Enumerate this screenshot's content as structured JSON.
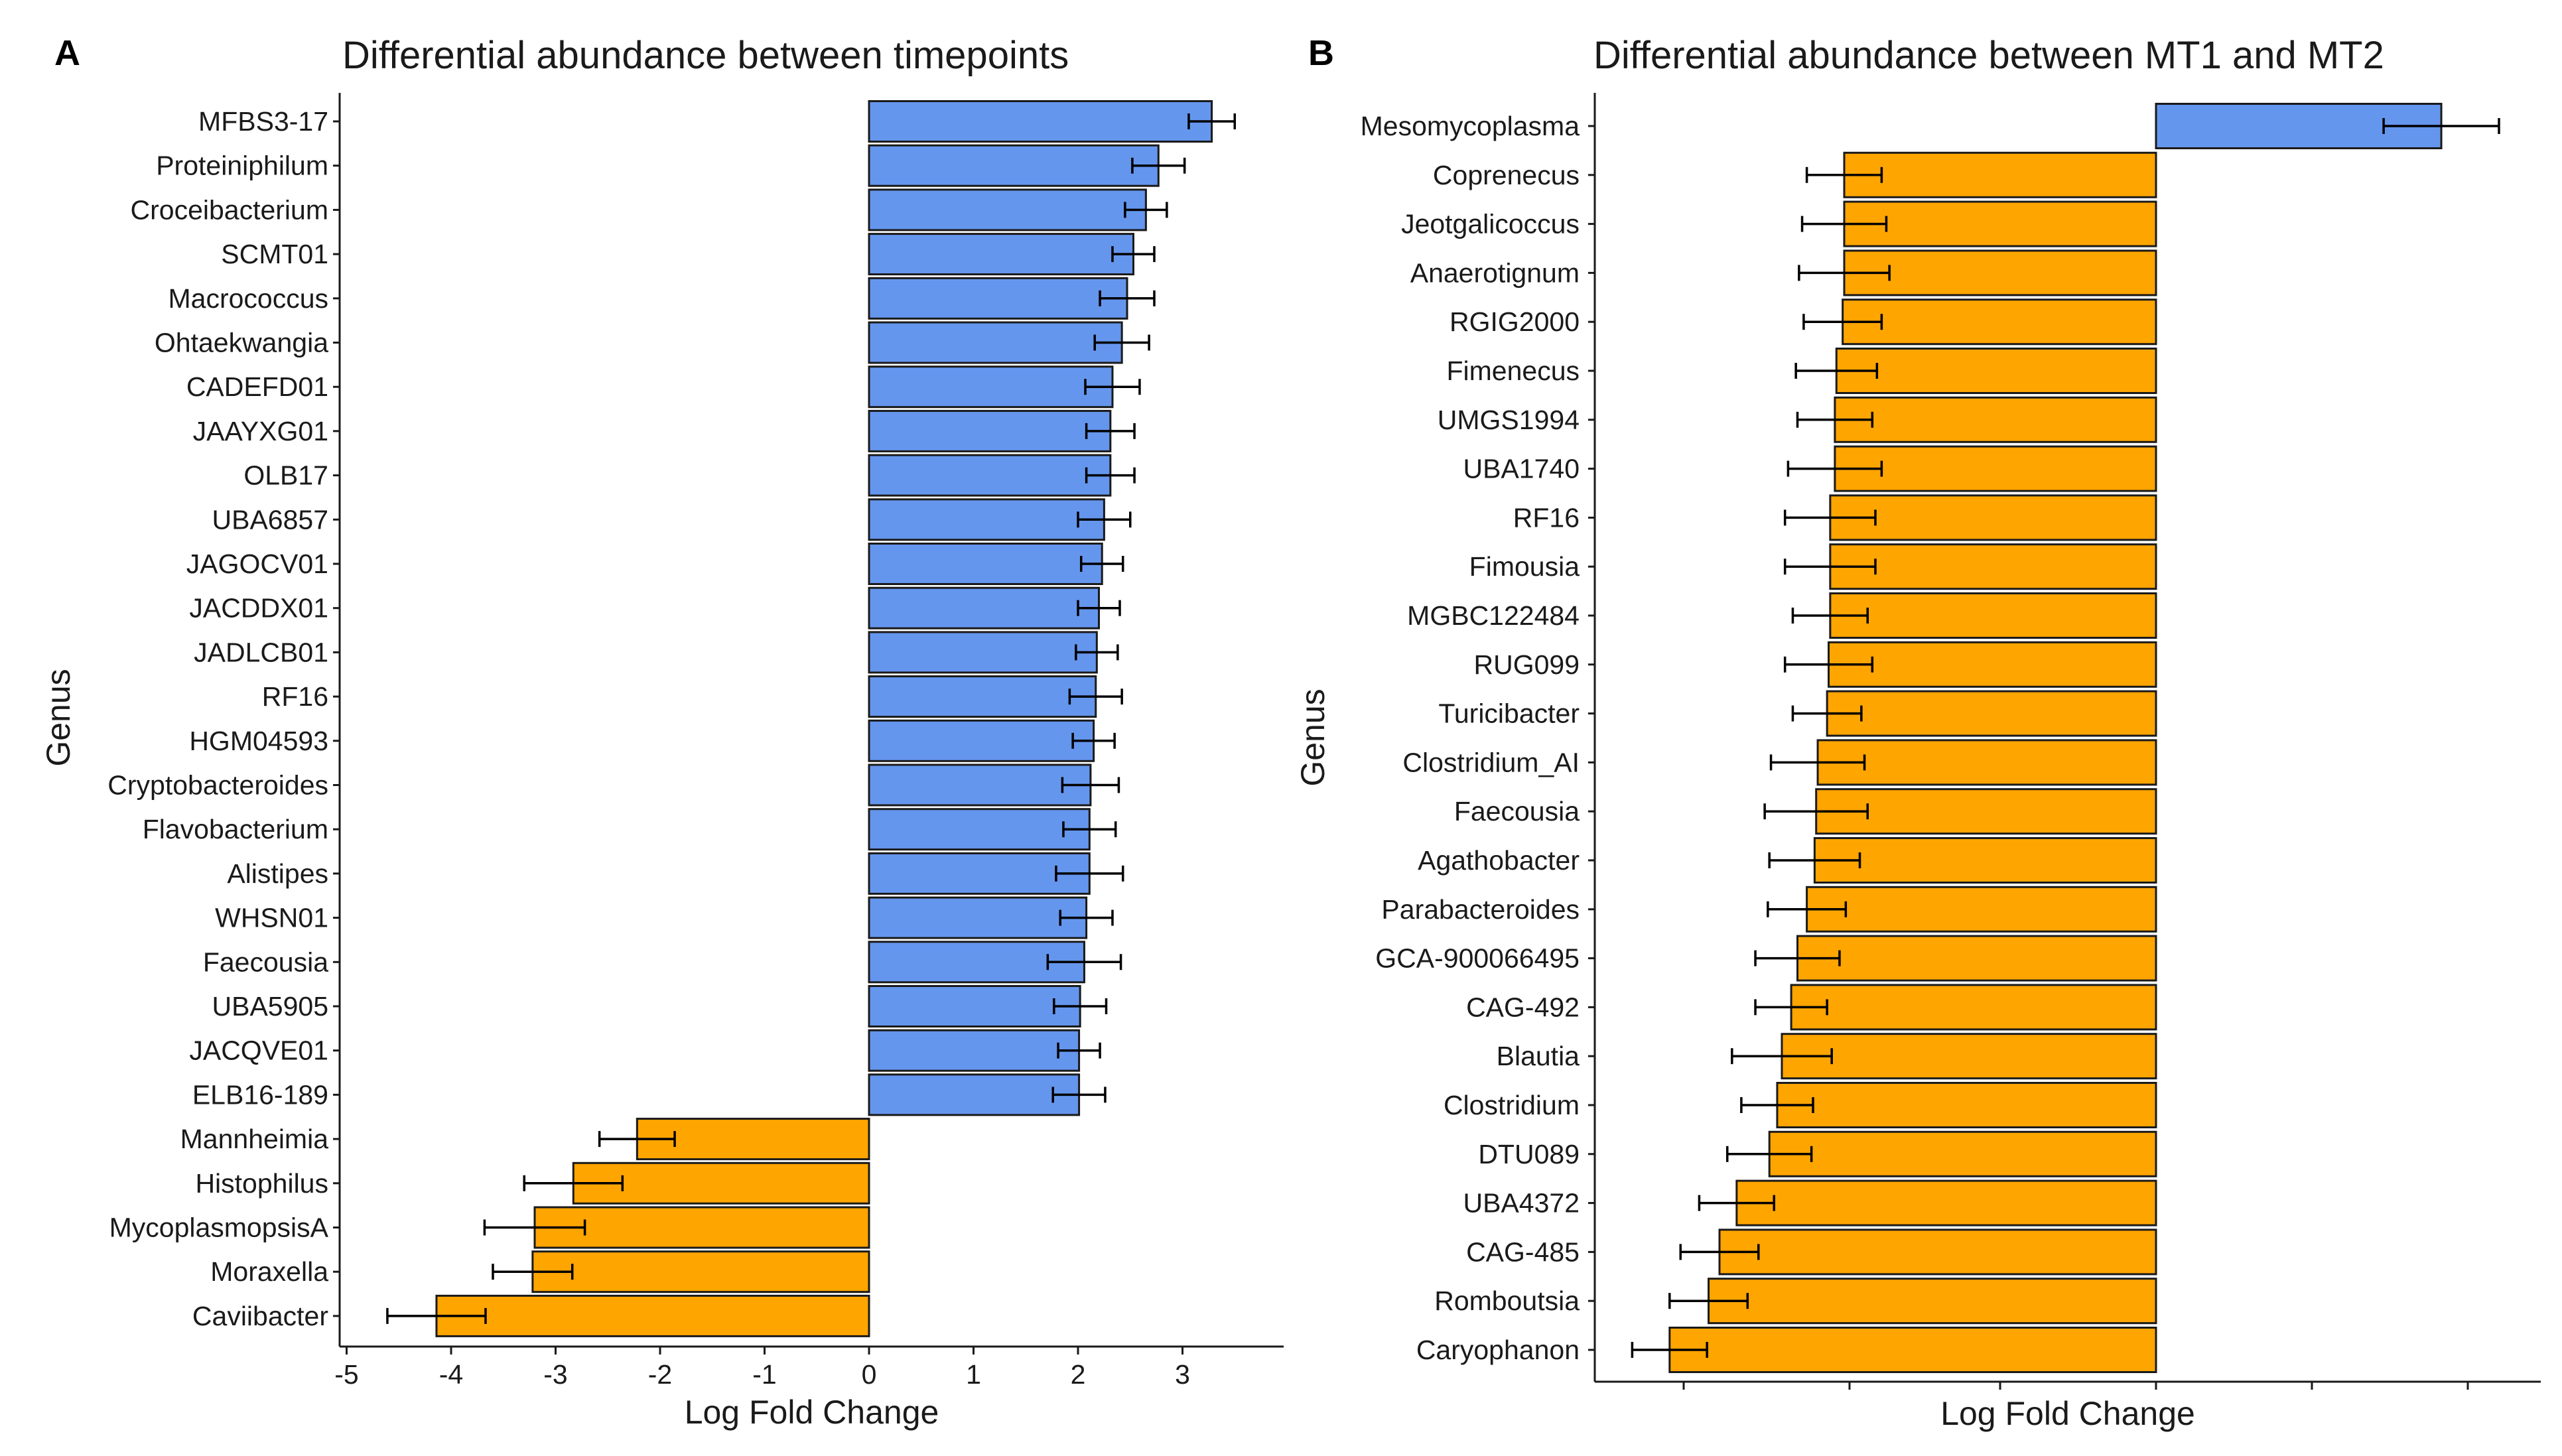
{
  "colors": {
    "positive": "#6596EE",
    "negative": "#FFA500",
    "bar_stroke": "#1a1a1a",
    "axis": "#1a1a1a",
    "error_bar": "#000000"
  },
  "chart_data": [
    {
      "panel_label": "A",
      "type": "bar",
      "orientation": "horizontal",
      "title": "Differential abundance between timepoints",
      "xlabel": "Log Fold Change",
      "ylabel": "Genus",
      "xlim": [
        -5,
        3.8
      ],
      "xticks": [
        -5,
        -4,
        -3,
        -2,
        -1,
        0,
        1,
        2,
        3
      ],
      "grid": false,
      "legend": "none",
      "categories": [
        "MFBS3-17",
        "Proteiniphilum",
        "Croceibacterium",
        "SCMT01",
        "Macrococcus",
        "Ohtaekwangia",
        "CADEFD01",
        "JAAYXG01",
        "OLB17",
        "UBA6857",
        "JAGOCV01",
        "JACDDX01",
        "JADLCB01",
        "RF16",
        "HGM04593",
        "Cryptobacteroides",
        "Flavobacterium",
        "Alistipes",
        "WHSN01",
        "Faecousia",
        "UBA5905",
        "JACQVE01",
        "ELB16-189",
        "Mannheimia",
        "Histophilus",
        "MycoplasmopsisA",
        "Moraxella",
        "Caviibacter"
      ],
      "values": [
        3.28,
        2.77,
        2.65,
        2.53,
        2.47,
        2.42,
        2.33,
        2.31,
        2.31,
        2.25,
        2.23,
        2.2,
        2.18,
        2.17,
        2.15,
        2.12,
        2.11,
        2.11,
        2.08,
        2.06,
        2.02,
        2.01,
        2.01,
        -2.22,
        -2.83,
        -3.2,
        -3.22,
        -4.14
      ],
      "error": [
        0.22,
        0.25,
        0.2,
        0.2,
        0.26,
        0.26,
        0.26,
        0.23,
        0.23,
        0.25,
        0.2,
        0.2,
        0.2,
        0.25,
        0.2,
        0.27,
        0.25,
        0.32,
        0.25,
        0.35,
        0.25,
        0.2,
        0.25,
        0.36,
        0.47,
        0.48,
        0.38,
        0.47
      ]
    },
    {
      "panel_label": "B",
      "type": "bar",
      "orientation": "horizontal",
      "title": "Differential abundance between MT1 and MT2",
      "xlabel": "Log Fold Change",
      "ylabel": "Genus",
      "x_tick_labels_shown": false,
      "grid": false,
      "legend": "none",
      "categories": [
        "Mesomycoplasma",
        "Coprenecus",
        "Jeotgalicoccus",
        "Anaerotignum",
        "RGIG2000",
        "Fimenecus",
        "UMGS1994",
        "UBA1740",
        "RF16",
        "Fimousia",
        "MGBC122484",
        "RUG099",
        "Turicibacter",
        "Clostridium_AI",
        "Faecousia",
        "Agathobacter",
        "Parabacteroides",
        "GCA-900066495",
        "CAG-492",
        "Blautia",
        "Clostridium",
        "DTU089",
        "UBA4372",
        "CAG-485",
        "Romboutsia",
        "Caryophanon"
      ],
      "values": [
        1.83,
        -2.0,
        -2.0,
        -2.0,
        -2.01,
        -2.05,
        -2.06,
        -2.06,
        -2.09,
        -2.09,
        -2.09,
        -2.1,
        -2.11,
        -2.17,
        -2.18,
        -2.19,
        -2.24,
        -2.3,
        -2.34,
        -2.4,
        -2.43,
        -2.48,
        -2.69,
        -2.8,
        -2.87,
        -3.12
      ],
      "error": [
        0.37,
        0.24,
        0.27,
        0.29,
        0.25,
        0.26,
        0.24,
        0.3,
        0.29,
        0.29,
        0.24,
        0.28,
        0.22,
        0.3,
        0.33,
        0.29,
        0.25,
        0.27,
        0.23,
        0.32,
        0.23,
        0.27,
        0.24,
        0.25,
        0.25,
        0.24
      ]
    }
  ]
}
